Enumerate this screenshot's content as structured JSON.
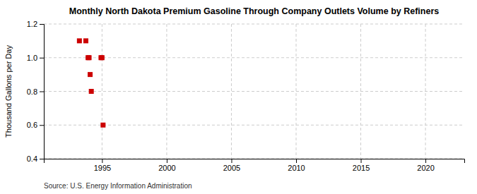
{
  "chart_data": {
    "type": "scatter",
    "title": "Monthly North Dakota Premium Gasoline Through Company Outlets Volume by Refiners",
    "ylabel": "Thousand Gallons per Day",
    "source": "Source: U.S. Energy Information Administration",
    "x": [
      1993.25,
      1993.75,
      1993.92,
      1994.0,
      1994.08,
      1994.17,
      1994.92,
      1995.0,
      1995.08
    ],
    "values": [
      1.1,
      1.1,
      1.0,
      1.0,
      0.9,
      0.8,
      1.0,
      1.0,
      0.6
    ],
    "color": "#cc0000",
    "marker": "square",
    "xlim": [
      1990.5,
      2023
    ],
    "ylim": [
      0.4,
      1.2
    ],
    "xticks": [
      1995,
      2000,
      2005,
      2010,
      2015,
      2020
    ],
    "yticks": [
      0.4,
      0.6,
      0.8,
      {
        "value": 1.0,
        "label": "1.0"
      },
      1.2
    ],
    "grid": true
  }
}
